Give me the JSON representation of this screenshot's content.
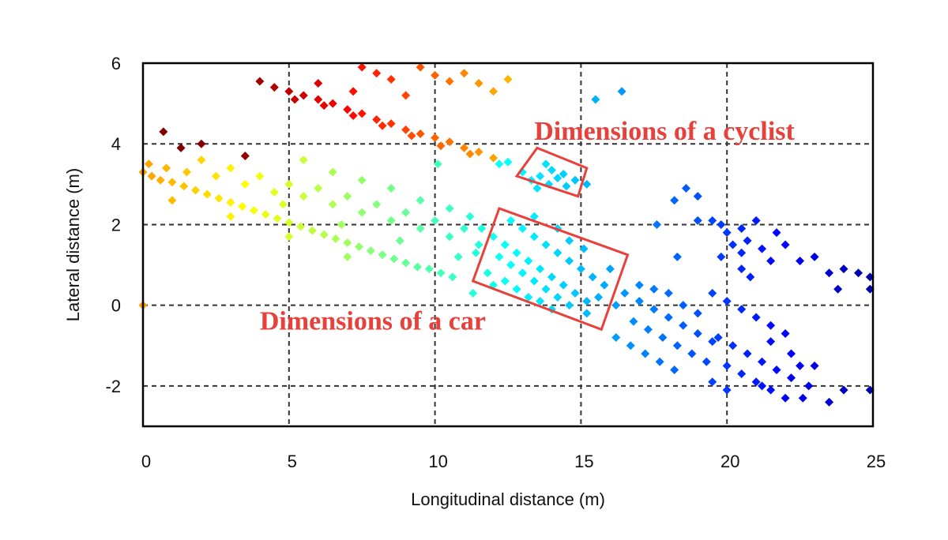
{
  "chart_data": {
    "type": "scatter",
    "title": "",
    "xlabel": "Longitudinal distance (m)",
    "ylabel": "Lateral distance (m)",
    "xlim": [
      0,
      25
    ],
    "ylim": [
      -3,
      6
    ],
    "xticks": [
      "0",
      "5",
      "10",
      "15",
      "20",
      "25"
    ],
    "yticks": [
      "-2",
      "0",
      "2",
      "4",
      "6"
    ],
    "xtick_values": [
      0,
      5,
      10,
      15,
      20,
      25
    ],
    "ytick_values": [
      -2,
      0,
      2,
      4,
      6
    ],
    "ygrid_values": [
      -2,
      0,
      2,
      4
    ],
    "grid": true,
    "marker": "diamond",
    "colormap": "jet, colored by longitudinal distance",
    "colors": {
      "annotation": "#e8403a",
      "grid": "#333333",
      "frame": "#000000"
    },
    "annotations": [
      {
        "text": "Dimensions of a cyclist",
        "x": 13.4,
        "y": 4.1
      },
      {
        "text": "Dimensions of a car",
        "x": 4.0,
        "y": -0.6
      }
    ],
    "regions": [
      {
        "name": "cyclist",
        "corners": [
          [
            13.5,
            3.9
          ],
          [
            15.2,
            3.4
          ],
          [
            14.9,
            2.7
          ],
          [
            12.8,
            3.2
          ]
        ]
      },
      {
        "name": "car",
        "corners": [
          [
            12.2,
            2.4
          ],
          [
            16.6,
            1.25
          ],
          [
            15.7,
            -0.6
          ],
          [
            11.3,
            0.6
          ]
        ]
      }
    ],
    "series": [
      {
        "points": [
          [
            4.0,
            5.55
          ],
          [
            4.5,
            5.4
          ],
          [
            5.0,
            5.3
          ],
          [
            5.5,
            5.2
          ],
          [
            6.0,
            5.1
          ],
          [
            6.5,
            5.0
          ],
          [
            7.0,
            4.85
          ],
          [
            7.5,
            4.75
          ],
          [
            8.0,
            4.6
          ],
          [
            8.5,
            4.5
          ],
          [
            9.0,
            4.35
          ],
          [
            9.5,
            4.25
          ],
          [
            10.0,
            4.15
          ],
          [
            10.5,
            4.05
          ],
          [
            11.0,
            3.9
          ],
          [
            11.5,
            3.8
          ],
          [
            12.0,
            3.65
          ],
          [
            12.5,
            3.55
          ],
          [
            5.2,
            5.1
          ],
          [
            6.2,
            4.95
          ],
          [
            7.2,
            4.7
          ],
          [
            8.2,
            4.45
          ],
          [
            9.2,
            4.2
          ],
          [
            10.2,
            3.95
          ],
          [
            11.2,
            3.75
          ],
          [
            12.2,
            3.5
          ],
          [
            7.5,
            5.9
          ],
          [
            8.0,
            5.75
          ],
          [
            8.5,
            5.6
          ],
          [
            9.5,
            5.9
          ],
          [
            10.0,
            5.7
          ],
          [
            10.5,
            5.55
          ],
          [
            11.0,
            5.75
          ],
          [
            11.5,
            5.5
          ],
          [
            12.0,
            5.3
          ],
          [
            12.5,
            5.6
          ],
          [
            10.1,
            3.5
          ],
          [
            9.0,
            5.2
          ],
          [
            7.2,
            5.3
          ],
          [
            6.0,
            5.5
          ]
        ]
      },
      {
        "points": [
          [
            0.0,
            3.3
          ],
          [
            0.3,
            3.2
          ],
          [
            0.6,
            3.1
          ],
          [
            1.0,
            3.05
          ],
          [
            1.4,
            2.95
          ],
          [
            1.8,
            2.85
          ],
          [
            2.2,
            2.75
          ],
          [
            2.6,
            2.65
          ],
          [
            3.0,
            2.55
          ],
          [
            3.4,
            2.45
          ],
          [
            3.8,
            2.35
          ],
          [
            4.2,
            2.25
          ],
          [
            4.6,
            2.15
          ],
          [
            5.0,
            2.05
          ],
          [
            5.4,
            1.95
          ],
          [
            5.8,
            1.85
          ],
          [
            6.2,
            1.75
          ],
          [
            6.6,
            1.65
          ],
          [
            7.0,
            1.55
          ],
          [
            7.4,
            1.45
          ],
          [
            7.8,
            1.35
          ],
          [
            8.2,
            1.25
          ],
          [
            8.6,
            1.15
          ],
          [
            9.0,
            1.05
          ],
          [
            9.4,
            0.95
          ],
          [
            9.8,
            0.9
          ],
          [
            10.2,
            0.8
          ],
          [
            10.6,
            0.7
          ],
          [
            0.2,
            3.5
          ],
          [
            0.8,
            3.4
          ],
          [
            1.5,
            3.3
          ],
          [
            2.0,
            3.6
          ],
          [
            2.5,
            3.2
          ],
          [
            3.0,
            3.4
          ],
          [
            3.5,
            3.0
          ],
          [
            4.0,
            3.2
          ],
          [
            4.5,
            2.8
          ],
          [
            5.0,
            3.0
          ],
          [
            5.5,
            2.7
          ],
          [
            6.0,
            2.9
          ],
          [
            6.5,
            2.5
          ],
          [
            7.0,
            2.7
          ],
          [
            7.5,
            2.3
          ],
          [
            8.0,
            2.5
          ],
          [
            8.5,
            2.1
          ],
          [
            9.0,
            2.3
          ],
          [
            9.5,
            1.9
          ],
          [
            10.0,
            2.1
          ],
          [
            10.5,
            1.7
          ],
          [
            11.0,
            1.9
          ],
          [
            11.5,
            1.5
          ],
          [
            5.5,
            3.6
          ],
          [
            6.5,
            3.3
          ],
          [
            7.5,
            3.1
          ],
          [
            8.5,
            2.9
          ],
          [
            9.5,
            2.6
          ],
          [
            10.5,
            2.4
          ],
          [
            11.2,
            2.2
          ],
          [
            2.0,
            4.0
          ],
          [
            3.5,
            3.7
          ],
          [
            0.7,
            4.3
          ],
          [
            1.3,
            3.9
          ],
          [
            4.8,
            2.5
          ],
          [
            6.8,
            2.0
          ],
          [
            8.8,
            1.6
          ],
          [
            10.8,
            1.2
          ],
          [
            11.3,
            0.3
          ],
          [
            0.0,
            0.0
          ],
          [
            1.0,
            2.6
          ],
          [
            3.0,
            2.2
          ],
          [
            5.0,
            1.7
          ],
          [
            7.0,
            1.2
          ]
        ]
      },
      {
        "points": [
          [
            13.0,
            3.3
          ],
          [
            13.3,
            3.1
          ],
          [
            13.6,
            3.2
          ],
          [
            13.9,
            3.0
          ],
          [
            14.2,
            3.15
          ],
          [
            14.5,
            2.95
          ],
          [
            14.8,
            3.1
          ],
          [
            13.5,
            2.9
          ],
          [
            14.0,
            3.35
          ],
          [
            14.4,
            3.25
          ],
          [
            15.2,
            3.0
          ],
          [
            13.8,
            3.5
          ]
        ]
      },
      {
        "points": [
          [
            11.6,
            1.9
          ],
          [
            12.0,
            1.7
          ],
          [
            12.4,
            1.5
          ],
          [
            12.8,
            1.3
          ],
          [
            13.2,
            1.1
          ],
          [
            13.6,
            0.9
          ],
          [
            14.0,
            0.7
          ],
          [
            14.4,
            0.5
          ],
          [
            14.8,
            0.3
          ],
          [
            15.2,
            0.1
          ],
          [
            12.2,
            1.2
          ],
          [
            12.6,
            1.0
          ],
          [
            13.0,
            0.8
          ],
          [
            13.4,
            0.6
          ],
          [
            13.8,
            0.4
          ],
          [
            14.2,
            0.2
          ],
          [
            14.6,
            0.0
          ],
          [
            12.4,
            0.6
          ],
          [
            12.8,
            0.4
          ],
          [
            13.2,
            0.2
          ],
          [
            13.6,
            0.1
          ],
          [
            14.0,
            -0.1
          ],
          [
            12.6,
            2.1
          ],
          [
            13.0,
            1.9
          ],
          [
            13.4,
            1.7
          ],
          [
            13.8,
            1.5
          ],
          [
            14.2,
            1.3
          ],
          [
            14.6,
            1.1
          ],
          [
            15.0,
            0.9
          ],
          [
            15.4,
            0.7
          ],
          [
            15.8,
            0.5
          ],
          [
            16.0,
            0.9
          ],
          [
            15.6,
            0.2
          ],
          [
            15.2,
            -0.2
          ],
          [
            16.2,
            0.0
          ],
          [
            12.0,
            0.5
          ],
          [
            11.8,
            0.8
          ],
          [
            14.6,
            1.6
          ],
          [
            14.2,
            1.9
          ],
          [
            13.4,
            2.2
          ],
          [
            15.1,
            1.4
          ],
          [
            11.4,
            1.3
          ]
        ]
      },
      {
        "points": [
          [
            16.5,
            0.3
          ],
          [
            17.0,
            0.1
          ],
          [
            17.5,
            -0.1
          ],
          [
            18.0,
            -0.3
          ],
          [
            18.5,
            -0.5
          ],
          [
            19.0,
            -0.7
          ],
          [
            19.5,
            -0.9
          ],
          [
            16.8,
            -0.4
          ],
          [
            17.3,
            -0.6
          ],
          [
            17.8,
            -0.8
          ],
          [
            18.3,
            -1.0
          ],
          [
            18.8,
            -1.2
          ],
          [
            19.3,
            -1.4
          ],
          [
            16.2,
            -0.8
          ],
          [
            16.7,
            -1.0
          ],
          [
            17.2,
            -1.2
          ],
          [
            17.7,
            -1.4
          ],
          [
            18.2,
            -1.6
          ],
          [
            17.0,
            0.5
          ],
          [
            17.5,
            0.4
          ],
          [
            18.0,
            0.3
          ],
          [
            18.5,
            0.0
          ],
          [
            19.0,
            -0.2
          ],
          [
            18.6,
            2.9
          ],
          [
            18.2,
            2.6
          ],
          [
            17.6,
            2.0
          ],
          [
            19.0,
            2.1
          ],
          [
            19.5,
            2.1
          ],
          [
            19.8,
            2.0
          ],
          [
            20.0,
            1.8
          ],
          [
            20.5,
            1.9
          ],
          [
            21.0,
            2.1
          ],
          [
            20.2,
            1.5
          ],
          [
            20.7,
            1.6
          ],
          [
            21.2,
            1.4
          ],
          [
            21.7,
            1.8
          ],
          [
            20.5,
            1.3
          ],
          [
            21.5,
            1.1
          ],
          [
            22.0,
            1.5
          ],
          [
            22.5,
            1.1
          ],
          [
            23.0,
            1.2
          ],
          [
            23.5,
            0.8
          ],
          [
            24.0,
            0.9
          ],
          [
            24.5,
            0.8
          ],
          [
            24.9,
            0.7
          ],
          [
            23.8,
            0.4
          ],
          [
            24.9,
            0.4
          ],
          [
            20.5,
            0.9
          ],
          [
            20.8,
            0.7
          ],
          [
            19.0,
            2.7
          ],
          [
            19.5,
            0.3
          ],
          [
            20.0,
            0.1
          ],
          [
            20.5,
            -0.1
          ],
          [
            21.0,
            -0.3
          ],
          [
            21.5,
            -0.5
          ],
          [
            22.0,
            -0.7
          ],
          [
            19.7,
            -0.8
          ],
          [
            20.2,
            -1.0
          ],
          [
            20.7,
            -1.2
          ],
          [
            21.2,
            -1.4
          ],
          [
            21.7,
            -1.6
          ],
          [
            22.2,
            -1.8
          ],
          [
            20.0,
            -1.5
          ],
          [
            20.5,
            -1.7
          ],
          [
            21.0,
            -1.9
          ],
          [
            21.5,
            -2.1
          ],
          [
            22.0,
            -2.3
          ],
          [
            19.5,
            -1.9
          ],
          [
            20.0,
            -2.1
          ],
          [
            21.2,
            -2.0
          ],
          [
            22.5,
            -1.5
          ],
          [
            23.0,
            -1.5
          ],
          [
            22.8,
            -2.0
          ],
          [
            23.5,
            -2.4
          ],
          [
            24.0,
            -2.1
          ],
          [
            24.9,
            -2.1
          ],
          [
            22.6,
            -2.3
          ],
          [
            15.5,
            5.1
          ],
          [
            16.4,
            5.3
          ],
          [
            18.3,
            1.2
          ],
          [
            19.8,
            1.2
          ],
          [
            21.5,
            -0.9
          ],
          [
            22.2,
            -1.2
          ]
        ]
      }
    ]
  }
}
